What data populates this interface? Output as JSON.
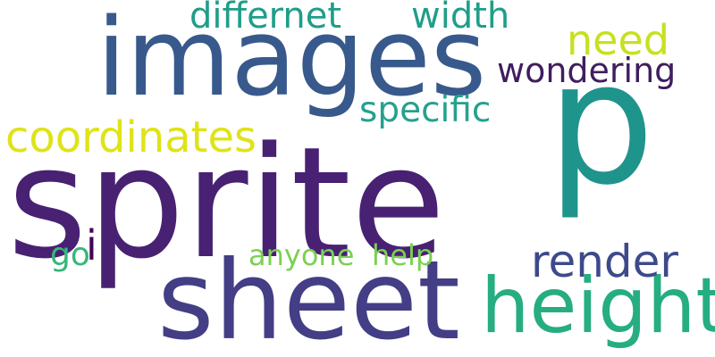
{
  "words": [
    {
      "id": "sprite",
      "text": "sprite",
      "color": "#482173"
    },
    {
      "id": "sheet",
      "text": "sheet",
      "color": "#433e85"
    },
    {
      "id": "images",
      "text": "images",
      "color": "#38598c"
    },
    {
      "id": "p",
      "text": "p",
      "color": "#1f948c"
    },
    {
      "id": "height",
      "text": "height",
      "color": "#26ad81"
    },
    {
      "id": "coordinates",
      "text": "coordinates",
      "color": "#dfe318"
    },
    {
      "id": "differnet",
      "text": "differnet",
      "color": "#1f9e89"
    },
    {
      "id": "width",
      "text": "width",
      "color": "#1f9e89"
    },
    {
      "id": "need",
      "text": "need",
      "color": "#c8e020"
    },
    {
      "id": "wondering",
      "text": "wondering",
      "color": "#3f1e5e"
    },
    {
      "id": "specific",
      "text": "specific",
      "color": "#25a18e"
    },
    {
      "id": "render",
      "text": "render",
      "color": "#3d4a8a"
    },
    {
      "id": "anyone",
      "text": "anyone",
      "color": "#7ad151"
    },
    {
      "id": "help",
      "text": "help",
      "color": "#7ad151"
    },
    {
      "id": "go",
      "text": "go",
      "color": "#35b779"
    },
    {
      "id": "i",
      "text": "i",
      "color": "#440154"
    }
  ]
}
